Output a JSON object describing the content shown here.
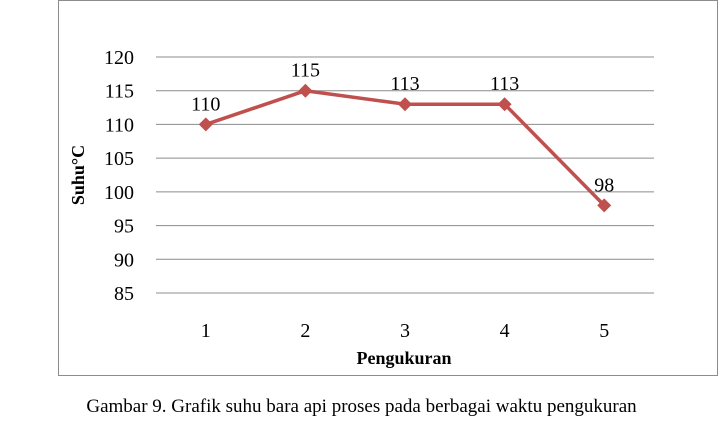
{
  "caption": "Gambar 9. Grafik suhu bara api proses pada berbagai waktu pengukuran",
  "chart_data": {
    "type": "line",
    "categories": [
      "1",
      "2",
      "3",
      "4",
      "5"
    ],
    "series": [
      {
        "values": [
          110,
          115,
          113,
          113,
          98
        ],
        "color": "#c0504d",
        "marker": "diamond"
      }
    ],
    "data_labels": [
      "110",
      "115",
      "113",
      "113",
      "98"
    ],
    "xlabel": "Pengukuran",
    "ylabel": "Suhu°C",
    "ylim": [
      85,
      120
    ],
    "yticks": [
      85,
      90,
      95,
      100,
      105,
      110,
      115,
      120
    ],
    "grid": true,
    "grid_color": "#8c8c8c"
  }
}
